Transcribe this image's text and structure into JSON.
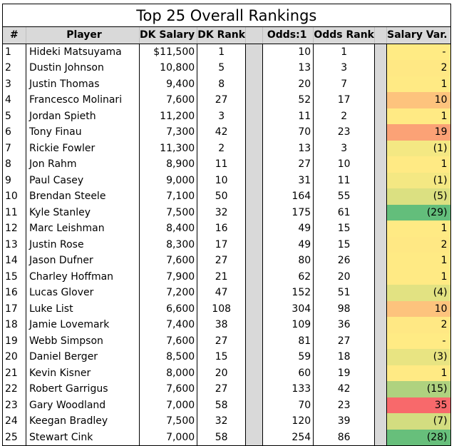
{
  "title": "Top 25 Overall Rankings",
  "headers": {
    "num": "#",
    "player": "Player",
    "dk_salary": "DK Salary",
    "dk_rank": "DK Rank",
    "odds": "Odds:1",
    "odds_rank": "Odds Rank",
    "salary_var": "Salary Var."
  },
  "colors": {
    "header_bg": "#d9d9d9",
    "neutral_yellow": "#ffeb84",
    "orange": "#fba276",
    "red": "#f8696b",
    "green": "#63be7b"
  },
  "rows": [
    {
      "num": "1",
      "player": "Hideki Matsuyama",
      "dk_salary": "$11,500",
      "dk_rank": "1",
      "odds": "10",
      "odds_rank": "1",
      "salary_var": "-",
      "var_color": "#ffeb84"
    },
    {
      "num": "2",
      "player": "Dustin Johnson",
      "dk_salary": "10,800",
      "dk_rank": "5",
      "odds": "13",
      "odds_rank": "3",
      "salary_var": "2",
      "var_color": "#ffe884"
    },
    {
      "num": "3",
      "player": "Justin Thomas",
      "dk_salary": "9,400",
      "dk_rank": "8",
      "odds": "20",
      "odds_rank": "7",
      "salary_var": "1",
      "var_color": "#ffea84"
    },
    {
      "num": "4",
      "player": "Francesco Molinari",
      "dk_salary": "7,600",
      "dk_rank": "27",
      "odds": "52",
      "odds_rank": "17",
      "salary_var": "10",
      "var_color": "#fdc37d"
    },
    {
      "num": "5",
      "player": "Jordan Spieth",
      "dk_salary": "11,200",
      "dk_rank": "3",
      "odds": "11",
      "odds_rank": "2",
      "salary_var": "1",
      "var_color": "#ffea84"
    },
    {
      "num": "6",
      "player": "Tony Finau",
      "dk_salary": "7,300",
      "dk_rank": "42",
      "odds": "70",
      "odds_rank": "23",
      "salary_var": "19",
      "var_color": "#fba276"
    },
    {
      "num": "7",
      "player": "Rickie Fowler",
      "dk_salary": "11,300",
      "dk_rank": "2",
      "odds": "13",
      "odds_rank": "3",
      "salary_var": "(1)",
      "var_color": "#f4e883"
    },
    {
      "num": "8",
      "player": "Jon Rahm",
      "dk_salary": "8,900",
      "dk_rank": "11",
      "odds": "27",
      "odds_rank": "10",
      "salary_var": "1",
      "var_color": "#ffea84"
    },
    {
      "num": "9",
      "player": "Paul Casey",
      "dk_salary": "9,000",
      "dk_rank": "10",
      "odds": "31",
      "odds_rank": "11",
      "salary_var": "(1)",
      "var_color": "#f4e883"
    },
    {
      "num": "10",
      "player": "Brendan Steele",
      "dk_salary": "7,100",
      "dk_rank": "50",
      "odds": "164",
      "odds_rank": "55",
      "salary_var": "(5)",
      "var_color": "#dbe081"
    },
    {
      "num": "11",
      "player": "Kyle Stanley",
      "dk_salary": "7,500",
      "dk_rank": "32",
      "odds": "175",
      "odds_rank": "61",
      "salary_var": "(29)",
      "var_color": "#63be7b"
    },
    {
      "num": "12",
      "player": "Marc Leishman",
      "dk_salary": "8,400",
      "dk_rank": "16",
      "odds": "49",
      "odds_rank": "15",
      "salary_var": "1",
      "var_color": "#ffea84"
    },
    {
      "num": "13",
      "player": "Justin Rose",
      "dk_salary": "8,300",
      "dk_rank": "17",
      "odds": "49",
      "odds_rank": "15",
      "salary_var": "2",
      "var_color": "#ffe884"
    },
    {
      "num": "14",
      "player": "Jason Dufner",
      "dk_salary": "7,600",
      "dk_rank": "27",
      "odds": "80",
      "odds_rank": "26",
      "salary_var": "1",
      "var_color": "#ffea84"
    },
    {
      "num": "15",
      "player": "Charley Hoffman",
      "dk_salary": "7,900",
      "dk_rank": "21",
      "odds": "62",
      "odds_rank": "20",
      "salary_var": "1",
      "var_color": "#ffea84"
    },
    {
      "num": "16",
      "player": "Lucas Glover",
      "dk_salary": "7,200",
      "dk_rank": "47",
      "odds": "152",
      "odds_rank": "51",
      "salary_var": "(4)",
      "var_color": "#e2e282"
    },
    {
      "num": "17",
      "player": "Luke List",
      "dk_salary": "6,600",
      "dk_rank": "108",
      "odds": "304",
      "odds_rank": "98",
      "salary_var": "10",
      "var_color": "#fdc37d"
    },
    {
      "num": "18",
      "player": "Jamie Lovemark",
      "dk_salary": "7,400",
      "dk_rank": "38",
      "odds": "109",
      "odds_rank": "36",
      "salary_var": "2",
      "var_color": "#ffe884"
    },
    {
      "num": "19",
      "player": "Webb Simpson",
      "dk_salary": "7,600",
      "dk_rank": "27",
      "odds": "81",
      "odds_rank": "27",
      "salary_var": "-",
      "var_color": "#ffeb84"
    },
    {
      "num": "20",
      "player": "Daniel Berger",
      "dk_salary": "8,500",
      "dk_rank": "15",
      "odds": "59",
      "odds_rank": "18",
      "salary_var": "(3)",
      "var_color": "#e8e482"
    },
    {
      "num": "21",
      "player": "Kevin Kisner",
      "dk_salary": "8,000",
      "dk_rank": "20",
      "odds": "60",
      "odds_rank": "19",
      "salary_var": "1",
      "var_color": "#ffea84"
    },
    {
      "num": "22",
      "player": "Robert Garrigus",
      "dk_salary": "7,600",
      "dk_rank": "27",
      "odds": "133",
      "odds_rank": "42",
      "salary_var": "(15)",
      "var_color": "#afd27f"
    },
    {
      "num": "23",
      "player": "Gary Woodland",
      "dk_salary": "7,000",
      "dk_rank": "58",
      "odds": "70",
      "odds_rank": "23",
      "salary_var": "35",
      "var_color": "#f8696b"
    },
    {
      "num": "24",
      "player": "Keegan Bradley",
      "dk_salary": "7,500",
      "dk_rank": "32",
      "odds": "120",
      "odds_rank": "39",
      "salary_var": "(7)",
      "var_color": "#d3dd80"
    },
    {
      "num": "25",
      "player": "Stewart Cink",
      "dk_salary": "7,000",
      "dk_rank": "58",
      "odds": "254",
      "odds_rank": "86",
      "salary_var": "(28)",
      "var_color": "#67bf7b"
    }
  ]
}
